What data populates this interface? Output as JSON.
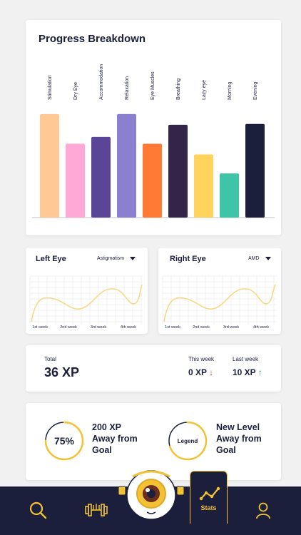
{
  "progress": {
    "title": "Progress Breakdown"
  },
  "chart_data": {
    "type": "bar",
    "title": "Progress Breakdown",
    "categories": [
      "Stimulation",
      "Dry Eye",
      "Accommodation",
      "Relaxation",
      "Eye Muscles",
      "Breathing",
      "Lazy eye",
      "Morning",
      "Evening"
    ],
    "values": [
      136,
      97,
      106,
      136,
      97,
      122,
      83,
      58,
      123
    ],
    "colors": [
      "#ffc894",
      "#ffaad6",
      "#5c4496",
      "#8b80cf",
      "#ff7a34",
      "#33244a",
      "#ffd35c",
      "#3ec4a6",
      "#1b1f3b"
    ],
    "ylim": [
      0,
      150
    ]
  },
  "left_eye": {
    "title": "Left Eye",
    "condition": "Astigmatism",
    "weeks": [
      "1st week",
      "2nd week",
      "3rd week",
      "4th week"
    ]
  },
  "right_eye": {
    "title": "Right Eye",
    "condition": "AMD",
    "weeks": [
      "1st week",
      "2nd week",
      "3rd week",
      "4th week"
    ]
  },
  "totals": {
    "total_label": "Total",
    "total_value": "36 XP",
    "this_week_label": "This week",
    "this_week_value": "0 XP",
    "this_week_arrow": "↓",
    "last_week_label": "Last week",
    "last_week_value": "10 XP",
    "last_week_arrow": "↑"
  },
  "goal": {
    "percent_label": "75%",
    "percent": 0.75,
    "text1_line1": "200 XP",
    "text1_line2": "Away from",
    "text1_line3": "Goal",
    "legend_label": "Legend",
    "legend_fill": 0.7,
    "text2_line1": "New Level",
    "text2_line2": "Away from",
    "text2_line3": "Goal"
  },
  "nav": {
    "stats_label": "Stats",
    "accent": "#f2c233",
    "background": "#1b1f3b"
  }
}
